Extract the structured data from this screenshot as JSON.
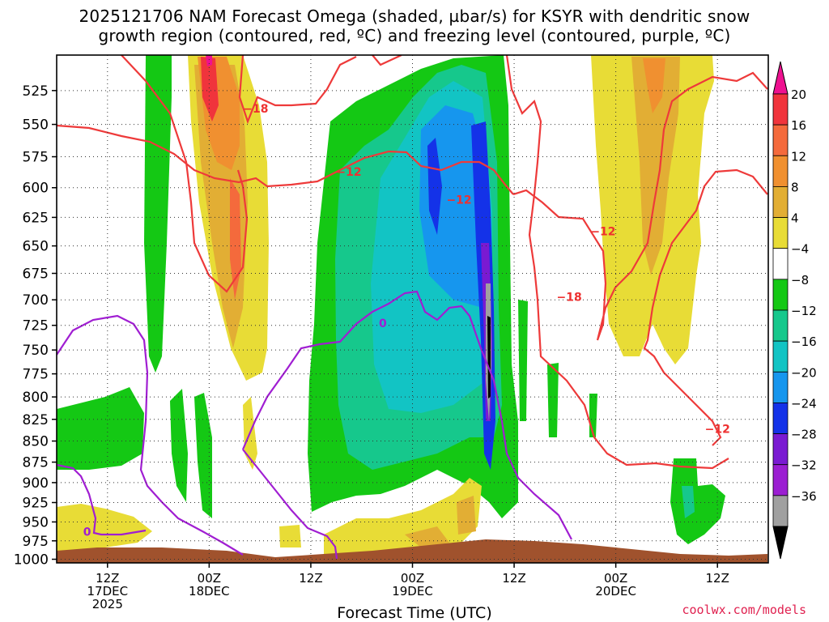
{
  "title_line1": "2025121706 NAM Forecast Omega (shaded, µbar/s) for KSYR with dendritic snow",
  "title_line2": "growth region (contoured, red, ºC) and freezing level (contoured, purple, ºC)",
  "credit": "coolwx.com/models",
  "chart_data": {
    "type": "time-height cross section",
    "xlabel": "Forecast Time (UTC)",
    "ylabel": "",
    "x_ticks": [
      {
        "hour": 6,
        "label": [
          "12Z",
          "17DEC",
          "2025"
        ]
      },
      {
        "hour": 18,
        "label": [
          "00Z",
          "18DEC"
        ]
      },
      {
        "hour": 30,
        "label": [
          "12Z"
        ]
      },
      {
        "hour": 42,
        "label": [
          "00Z",
          "19DEC"
        ]
      },
      {
        "hour": 54,
        "label": [
          "12Z"
        ]
      },
      {
        "hour": 66,
        "label": [
          "00Z",
          "20DEC"
        ]
      },
      {
        "hour": 78,
        "label": [
          "12Z"
        ]
      }
    ],
    "x_range_hours": [
      0,
      84
    ],
    "y_ticks": [
      525,
      550,
      575,
      600,
      625,
      650,
      675,
      700,
      725,
      750,
      775,
      800,
      825,
      850,
      875,
      900,
      925,
      950,
      975,
      1000
    ],
    "y_range_mb": [
      500,
      1005
    ],
    "y_scale": "log-pressure",
    "grid": "dotted",
    "colorbar": {
      "position": "right",
      "labels": [
        "20",
        "16",
        "12",
        "8",
        "4",
        "−4",
        "−8",
        "−12",
        "−16",
        "−20",
        "−24",
        "−28",
        "−32",
        "−36"
      ],
      "bins": [
        {
          "color": "#ee1190"
        },
        {
          "color": "#f0343c"
        },
        {
          "color": "#f46a3c"
        },
        {
          "color": "#f09030"
        },
        {
          "color": "#e2ae34"
        },
        {
          "color": "#e8dc36"
        },
        {
          "color": "#ffffff"
        },
        {
          "color": "#14c814"
        },
        {
          "color": "#16c88c"
        },
        {
          "color": "#12c4c4"
        },
        {
          "color": "#1696ee"
        },
        {
          "color": "#1432e8"
        },
        {
          "color": "#7a1ad2"
        },
        {
          "color": "#9b1ed2"
        },
        {
          "color": "#a0a0a0"
        },
        {
          "color": "#000000"
        }
      ]
    },
    "contour_labels": [
      {
        "text": "−18",
        "hour": 23.5,
        "mb": 538,
        "color": "#ee3030"
      },
      {
        "text": "−12",
        "hour": 34.5,
        "mb": 587,
        "color": "#ee3030"
      },
      {
        "text": "−12",
        "hour": 47.5,
        "mb": 610,
        "color": "#ee3030"
      },
      {
        "text": "−12",
        "hour": 64.5,
        "mb": 637,
        "color": "#ee3030"
      },
      {
        "text": "−18",
        "hour": 60.5,
        "mb": 697,
        "color": "#ee3030"
      },
      {
        "text": "−12",
        "hour": 78,
        "mb": 836,
        "color": "#ee3030"
      },
      {
        "text": "0",
        "hour": 38.5,
        "mb": 723,
        "color": "#a01ed2"
      },
      {
        "text": "0",
        "hour": 3.6,
        "mb": 963,
        "color": "#a01ed2"
      }
    ],
    "terrain_color": "#a0522d"
  }
}
